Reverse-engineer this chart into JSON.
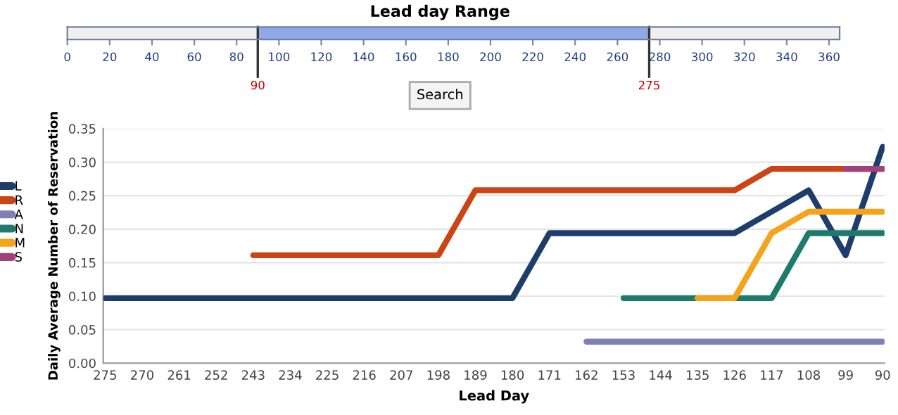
{
  "chart_data": [
    {
      "type": "bar",
      "orientation": "horizontal",
      "title": "Lead day Range",
      "categories": [
        null
      ],
      "values": [
        185
      ],
      "base": [
        90
      ],
      "color": "#8fa8e8",
      "xlim": [
        0,
        365
      ],
      "xticks": [
        0,
        20,
        40,
        60,
        80,
        100,
        120,
        140,
        160,
        180,
        200,
        220,
        240,
        260,
        280,
        300,
        320,
        340,
        360
      ],
      "tick_labels": "x",
      "ref_lines": [
        {
          "axis": "x",
          "value": 90,
          "label": "90",
          "color": "#333333"
        },
        {
          "axis": "x",
          "value": 275,
          "label": "275",
          "color": "#333333"
        }
      ],
      "annotations": [
        "Search"
      ]
    },
    {
      "type": "line",
      "xlabel": "Lead Day",
      "ylabel": "Daily Average Number of Reservation",
      "categories": [
        "275",
        "270",
        "261",
        "252",
        "243",
        "234",
        "225",
        "216",
        "207",
        "198",
        "189",
        "180",
        "171",
        "162",
        "153",
        "144",
        "135",
        "126",
        "117",
        "108",
        "99",
        "90"
      ],
      "ylim": [
        0,
        0.35
      ],
      "yticks": [
        {
          "value": 0,
          "label": "0.00"
        },
        {
          "value": 0.05,
          "label": "0.05"
        },
        {
          "value": 0.1,
          "label": "0.10"
        },
        {
          "value": 0.15,
          "label": "0.15"
        },
        {
          "value": 0.2,
          "label": "0.20"
        },
        {
          "value": 0.25,
          "label": "0.25"
        },
        {
          "value": 0.3,
          "label": "0.30"
        },
        {
          "value": 0.35,
          "label": "0.35"
        }
      ],
      "grid": "y",
      "legend": "left",
      "line_style": "solid",
      "series": [
        {
          "name": "L",
          "color": "#1f3d6b",
          "values": [
            0.097,
            0.097,
            0.097,
            0.097,
            0.097,
            0.097,
            0.097,
            0.097,
            0.097,
            0.097,
            0.097,
            0.097,
            0.194,
            0.194,
            0.194,
            0.194,
            0.194,
            0.194,
            0.226,
            0.258,
            0.161,
            0.323
          ]
        },
        {
          "name": "R",
          "color": "#cc4415",
          "values": [
            null,
            null,
            null,
            null,
            0.161,
            0.161,
            0.161,
            0.161,
            0.161,
            0.161,
            0.258,
            0.258,
            0.258,
            0.258,
            0.258,
            0.258,
            0.258,
            0.258,
            0.29,
            0.29,
            0.29,
            0.29
          ]
        },
        {
          "name": "A",
          "color": "#8080b8",
          "values": [
            null,
            null,
            null,
            null,
            null,
            null,
            null,
            null,
            null,
            null,
            null,
            null,
            null,
            0.032,
            0.032,
            0.032,
            0.032,
            0.032,
            0.032,
            0.032,
            0.032,
            0.032
          ]
        },
        {
          "name": "N",
          "color": "#1e7a6c",
          "values": [
            null,
            null,
            null,
            null,
            null,
            null,
            null,
            null,
            null,
            null,
            null,
            null,
            null,
            null,
            0.097,
            0.097,
            0.097,
            0.097,
            0.097,
            0.194,
            0.194,
            0.194
          ]
        },
        {
          "name": "M",
          "color": "#f5a31a",
          "values": [
            null,
            null,
            null,
            null,
            null,
            null,
            null,
            null,
            null,
            null,
            null,
            null,
            null,
            null,
            null,
            null,
            0.097,
            0.097,
            0.194,
            0.226,
            0.226,
            0.226
          ]
        },
        {
          "name": "S",
          "color": "#a3407a",
          "values": [
            null,
            null,
            null,
            null,
            null,
            null,
            null,
            null,
            null,
            null,
            null,
            null,
            null,
            null,
            null,
            null,
            null,
            null,
            null,
            null,
            0.29,
            0.29
          ]
        }
      ]
    }
  ]
}
